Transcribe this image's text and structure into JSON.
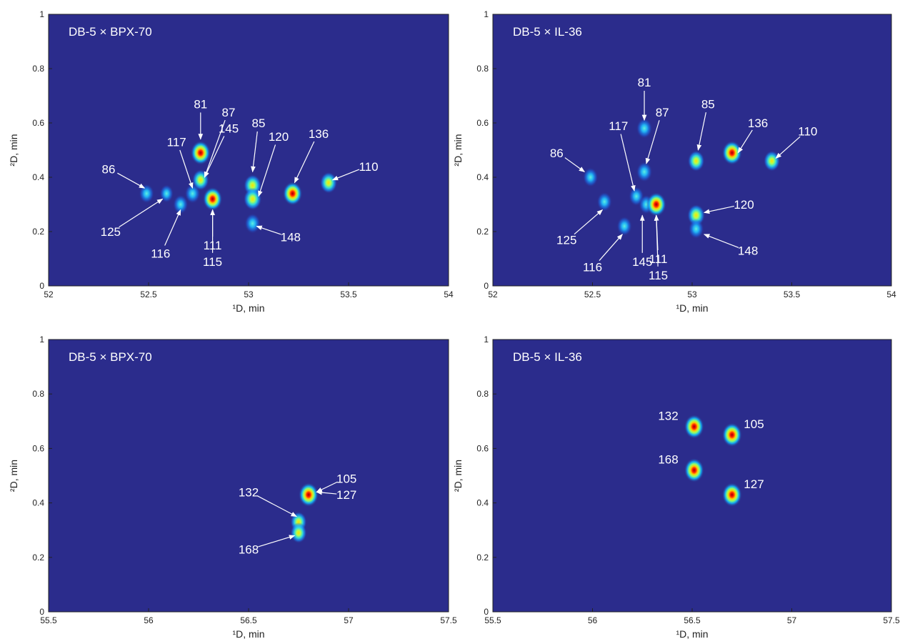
{
  "chart_data": [
    {
      "type": "heatmap",
      "title": "DB-5 × BPX-70",
      "xlabel": "¹D, min",
      "ylabel": "²D, min",
      "xlim": [
        52,
        54
      ],
      "ylim": [
        0,
        1
      ],
      "xticks": [
        "52",
        "52.5",
        "53",
        "53.5",
        "54"
      ],
      "yticks": [
        "0",
        "0.2",
        "0.4",
        "0.6",
        "0.8",
        "1"
      ],
      "peaks": [
        {
          "x": 52.49,
          "y": 0.34,
          "intensity": 0.45
        },
        {
          "x": 52.59,
          "y": 0.34,
          "intensity": 0.3
        },
        {
          "x": 52.66,
          "y": 0.3,
          "intensity": 0.45
        },
        {
          "x": 52.72,
          "y": 0.34,
          "intensity": 0.5
        },
        {
          "x": 52.76,
          "y": 0.49,
          "intensity": 1.0
        },
        {
          "x": 52.76,
          "y": 0.39,
          "intensity": 0.65
        },
        {
          "x": 52.82,
          "y": 0.32,
          "intensity": 0.95
        },
        {
          "x": 53.02,
          "y": 0.37,
          "intensity": 0.75
        },
        {
          "x": 53.02,
          "y": 0.32,
          "intensity": 0.8
        },
        {
          "x": 53.02,
          "y": 0.23,
          "intensity": 0.55
        },
        {
          "x": 53.22,
          "y": 0.34,
          "intensity": 0.95
        },
        {
          "x": 53.4,
          "y": 0.38,
          "intensity": 0.7
        }
      ],
      "annotations": [
        {
          "label": "81",
          "text_x": 52.76,
          "text_y": 0.67,
          "target_x": 52.76,
          "target_y": 0.54
        },
        {
          "label": "87",
          "text_x": 52.9,
          "text_y": 0.64,
          "target_x": 52.78,
          "target_y": 0.4
        },
        {
          "label": "145",
          "text_x": 52.9,
          "text_y": 0.58,
          "target_x": 52.78,
          "target_y": 0.4
        },
        {
          "label": "117",
          "text_x": 52.64,
          "text_y": 0.53,
          "target_x": 52.72,
          "target_y": 0.36
        },
        {
          "label": "86",
          "text_x": 52.3,
          "text_y": 0.43,
          "target_x": 52.48,
          "target_y": 0.36
        },
        {
          "label": "125",
          "text_x": 52.31,
          "text_y": 0.2,
          "target_x": 52.57,
          "target_y": 0.32
        },
        {
          "label": "116",
          "text_x": 52.56,
          "text_y": 0.12,
          "target_x": 52.66,
          "target_y": 0.28
        },
        {
          "label": "111",
          "text_x": 52.82,
          "text_y": 0.15,
          "target_x": 52.82,
          "target_y": 0.28
        },
        {
          "label": "115",
          "text_x": 52.82,
          "text_y": 0.09,
          "target_x": 52.82,
          "target_y": 0.28
        },
        {
          "label": "85",
          "text_x": 53.05,
          "text_y": 0.6,
          "target_x": 53.02,
          "target_y": 0.42
        },
        {
          "label": "120",
          "text_x": 53.15,
          "text_y": 0.55,
          "target_x": 53.05,
          "target_y": 0.33
        },
        {
          "label": "136",
          "text_x": 53.35,
          "text_y": 0.56,
          "target_x": 53.23,
          "target_y": 0.38
        },
        {
          "label": "148",
          "text_x": 53.21,
          "text_y": 0.18,
          "target_x": 53.04,
          "target_y": 0.22
        },
        {
          "label": "110",
          "text_x": 53.6,
          "text_y": 0.44,
          "target_x": 53.42,
          "target_y": 0.39
        }
      ]
    },
    {
      "type": "heatmap",
      "title": "DB-5 × IL-36",
      "xlabel": "¹D, min",
      "ylabel": "²D, min",
      "xlim": [
        52,
        54
      ],
      "ylim": [
        0,
        1
      ],
      "xticks": [
        "52",
        "52.5",
        "53",
        "53.5",
        "54"
      ],
      "yticks": [
        "0",
        "0.2",
        "0.4",
        "0.6",
        "0.8",
        "1"
      ],
      "peaks": [
        {
          "x": 52.49,
          "y": 0.4,
          "intensity": 0.45
        },
        {
          "x": 52.56,
          "y": 0.31,
          "intensity": 0.45
        },
        {
          "x": 52.66,
          "y": 0.22,
          "intensity": 0.45
        },
        {
          "x": 52.72,
          "y": 0.33,
          "intensity": 0.45
        },
        {
          "x": 52.76,
          "y": 0.58,
          "intensity": 0.55
        },
        {
          "x": 52.76,
          "y": 0.42,
          "intensity": 0.55
        },
        {
          "x": 52.77,
          "y": 0.3,
          "intensity": 0.45
        },
        {
          "x": 52.82,
          "y": 0.3,
          "intensity": 1.0
        },
        {
          "x": 53.02,
          "y": 0.46,
          "intensity": 0.65
        },
        {
          "x": 53.02,
          "y": 0.26,
          "intensity": 0.75
        },
        {
          "x": 53.02,
          "y": 0.21,
          "intensity": 0.5
        },
        {
          "x": 53.2,
          "y": 0.49,
          "intensity": 1.0
        },
        {
          "x": 53.4,
          "y": 0.46,
          "intensity": 0.6
        }
      ],
      "annotations": [
        {
          "label": "81",
          "text_x": 52.76,
          "text_y": 0.75,
          "target_x": 52.76,
          "target_y": 0.61
        },
        {
          "label": "87",
          "text_x": 52.85,
          "text_y": 0.64,
          "target_x": 52.77,
          "target_y": 0.45
        },
        {
          "label": "85",
          "text_x": 53.08,
          "text_y": 0.67,
          "target_x": 53.03,
          "target_y": 0.5
        },
        {
          "label": "136",
          "text_x": 53.33,
          "text_y": 0.6,
          "target_x": 53.23,
          "target_y": 0.49
        },
        {
          "label": "110",
          "text_x": 53.58,
          "text_y": 0.57,
          "target_x": 53.42,
          "target_y": 0.47
        },
        {
          "label": "117",
          "text_x": 52.63,
          "text_y": 0.59,
          "target_x": 52.71,
          "target_y": 0.35
        },
        {
          "label": "86",
          "text_x": 52.32,
          "text_y": 0.49,
          "target_x": 52.46,
          "target_y": 0.42
        },
        {
          "label": "125",
          "text_x": 52.37,
          "text_y": 0.17,
          "target_x": 52.55,
          "target_y": 0.28
        },
        {
          "label": "116",
          "text_x": 52.5,
          "text_y": 0.07,
          "target_x": 52.65,
          "target_y": 0.19
        },
        {
          "label": "145",
          "text_x": 52.75,
          "text_y": 0.09,
          "target_x": 52.75,
          "target_y": 0.26
        },
        {
          "label": "111",
          "text_x": 52.83,
          "text_y": 0.1,
          "target_x": 52.82,
          "target_y": 0.26
        },
        {
          "label": "115",
          "text_x": 52.83,
          "text_y": 0.04,
          "target_x": 52.82,
          "target_y": 0.26
        },
        {
          "label": "120",
          "text_x": 53.26,
          "text_y": 0.3,
          "target_x": 53.06,
          "target_y": 0.27
        },
        {
          "label": "148",
          "text_x": 53.28,
          "text_y": 0.13,
          "target_x": 53.06,
          "target_y": 0.19
        }
      ]
    },
    {
      "type": "heatmap",
      "title": "DB-5 × BPX-70",
      "xlabel": "¹D, min",
      "ylabel": "²D, min",
      "xlim": [
        55.5,
        57.5
      ],
      "ylim": [
        0,
        1
      ],
      "xticks": [
        "55.5",
        "56",
        "56.5",
        "57",
        "57.5"
      ],
      "yticks": [
        "0",
        "0.2",
        "0.4",
        "0.6",
        "0.8",
        "1"
      ],
      "peaks": [
        {
          "x": 56.8,
          "y": 0.43,
          "intensity": 1.0
        },
        {
          "x": 56.75,
          "y": 0.33,
          "intensity": 0.6
        },
        {
          "x": 56.75,
          "y": 0.29,
          "intensity": 0.6
        }
      ],
      "annotations": [
        {
          "label": "105",
          "text_x": 56.99,
          "text_y": 0.49,
          "target_x": 56.84,
          "target_y": 0.44
        },
        {
          "label": "127",
          "text_x": 56.99,
          "text_y": 0.43,
          "target_x": 56.84,
          "target_y": 0.44
        },
        {
          "label": "132",
          "text_x": 56.5,
          "text_y": 0.44,
          "target_x": 56.74,
          "target_y": 0.35
        },
        {
          "label": "168",
          "text_x": 56.5,
          "text_y": 0.23,
          "target_x": 56.73,
          "target_y": 0.28
        }
      ]
    },
    {
      "type": "heatmap",
      "title": "DB-5 × IL-36",
      "xlabel": "¹D, min",
      "ylabel": "²D, min",
      "xlim": [
        55.5,
        57.5
      ],
      "ylim": [
        0,
        1
      ],
      "xticks": [
        "55.5",
        "56",
        "56.5",
        "57",
        "57.5"
      ],
      "yticks": [
        "0",
        "0.2",
        "0.4",
        "0.6",
        "0.8",
        "1"
      ],
      "peaks": [
        {
          "x": 56.51,
          "y": 0.68,
          "intensity": 1.0
        },
        {
          "x": 56.51,
          "y": 0.52,
          "intensity": 1.0
        },
        {
          "x": 56.7,
          "y": 0.65,
          "intensity": 1.0
        },
        {
          "x": 56.7,
          "y": 0.43,
          "intensity": 1.0
        }
      ],
      "annotations": [
        {
          "label": "132",
          "text_x": 56.38,
          "text_y": 0.72
        },
        {
          "label": "105",
          "text_x": 56.81,
          "text_y": 0.69
        },
        {
          "label": "168",
          "text_x": 56.38,
          "text_y": 0.56
        },
        {
          "label": "127",
          "text_x": 56.81,
          "text_y": 0.47
        }
      ]
    }
  ]
}
